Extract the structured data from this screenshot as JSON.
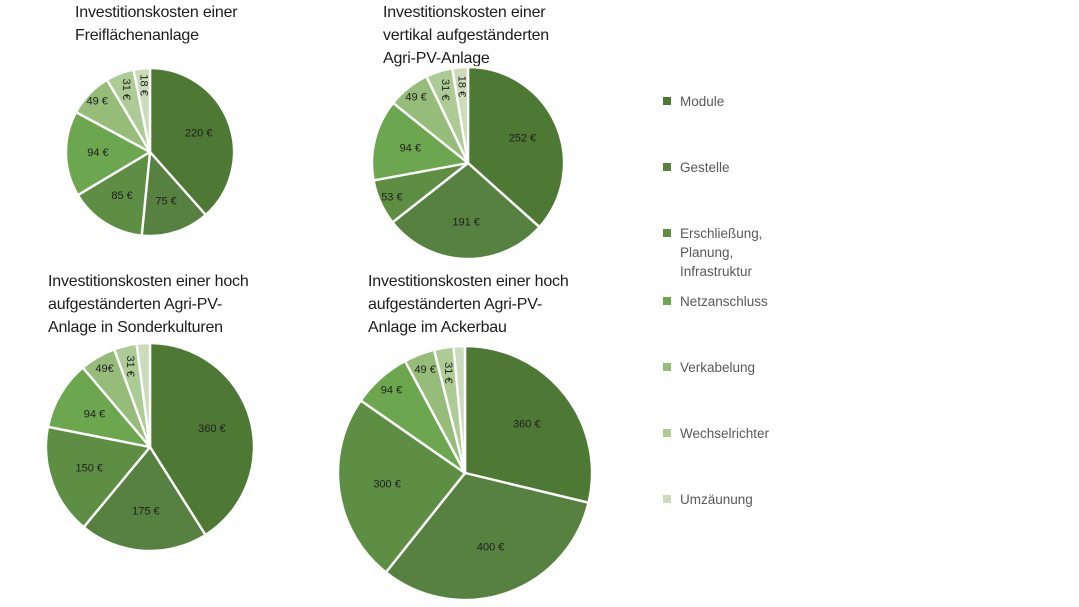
{
  "page": {
    "background_color": "#ffffff",
    "text_color": "#1c1c1c",
    "legend_text_color": "#595959"
  },
  "legend": {
    "items": [
      {
        "key": "module",
        "label": "Module",
        "lines": [
          "Module"
        ],
        "color": "#4d7935"
      },
      {
        "key": "gestelle",
        "label": "Gestelle",
        "lines": [
          "Gestelle"
        ],
        "color": "#568140"
      },
      {
        "key": "erschliessung",
        "label": "Erschließung, Planung, Infrastruktur",
        "lines": [
          "Erschließung,",
          "Planung,",
          "Infrastruktur"
        ],
        "color": "#5e8e43"
      },
      {
        "key": "netzanschluss",
        "label": "Netzanschluss",
        "lines": [
          "Netzanschluss"
        ],
        "color": "#6ca64e"
      },
      {
        "key": "verkabelung",
        "label": "Verkabelung",
        "lines": [
          "Verkabelung"
        ],
        "color": "#95bc78"
      },
      {
        "key": "wechselrichter",
        "label": "Wechselrichter",
        "lines": [
          "Wechselrichter"
        ],
        "color": "#adcb94"
      },
      {
        "key": "umzaeunung",
        "label": "Umzäunung",
        "lines": [
          "Umzäunung"
        ],
        "color": "#cbdcba"
      }
    ]
  },
  "chart_data": [
    {
      "type": "pie",
      "title": "Investitionskosten einer Freiflächenanlage",
      "title_lines": [
        "Investitionskosten einer",
        "Freiflächenanlage"
      ],
      "unit": "€",
      "slices": [
        {
          "category": "Module",
          "key": "module",
          "value": 220,
          "label": "220 €",
          "rotated": false
        },
        {
          "category": "Gestelle",
          "key": "gestelle",
          "value": 75,
          "label": "75 €",
          "rotated": false
        },
        {
          "category": "Erschließung, Planung, Infrastruktur",
          "key": "erschliessung",
          "value": 85,
          "label": "85 €",
          "rotated": false
        },
        {
          "category": "Netzanschluss",
          "key": "netzanschluss",
          "value": 94,
          "label": "94 €",
          "rotated": false
        },
        {
          "category": "Verkabelung",
          "key": "verkabelung",
          "value": 49,
          "label": "49 €",
          "rotated": false
        },
        {
          "category": "Wechselrichter",
          "key": "wechselrichter",
          "value": 31,
          "label": "31 €",
          "rotated": true
        },
        {
          "category": "Umzäunung",
          "key": "umzaeunung",
          "value": 18,
          "label": "18 €",
          "rotated": true
        }
      ]
    },
    {
      "type": "pie",
      "title": "Investitionskosten einer vertikal aufgeständerten Agri-PV-Anlage",
      "title_lines": [
        "Investitionskosten einer",
        "vertikal aufgeständerten",
        "Agri-PV-Anlage"
      ],
      "unit": "€",
      "slices": [
        {
          "category": "Module",
          "key": "module",
          "value": 252,
          "label": "252 €",
          "rotated": false
        },
        {
          "category": "Gestelle",
          "key": "gestelle",
          "value": 191,
          "label": "191 €",
          "rotated": false
        },
        {
          "category": "Erschließung, Planung, Infrastruktur",
          "key": "erschliessung",
          "value": 53,
          "label": "53 €",
          "rotated": false
        },
        {
          "category": "Netzanschluss",
          "key": "netzanschluss",
          "value": 94,
          "label": "94 €",
          "rotated": false
        },
        {
          "category": "Verkabelung",
          "key": "verkabelung",
          "value": 49,
          "label": "49 €",
          "rotated": false
        },
        {
          "category": "Wechselrichter",
          "key": "wechselrichter",
          "value": 31,
          "label": "31 €",
          "rotated": true
        },
        {
          "category": "Umzäunung",
          "key": "umzaeunung",
          "value": 18,
          "label": "18 €",
          "rotated": true
        }
      ]
    },
    {
      "type": "pie",
      "title": "Investitionskosten einer hoch aufgeständerten Agri-PV-Anlage in Sonderkulturen",
      "title_lines": [
        "Investitionskosten einer hoch",
        "aufgeständerten Agri-PV-",
        "Anlage in Sonderkulturen"
      ],
      "unit": "€",
      "slices": [
        {
          "category": "Module",
          "key": "module",
          "value": 360,
          "label": "360 €",
          "rotated": false
        },
        {
          "category": "Gestelle",
          "key": "gestelle",
          "value": 175,
          "label": "175 €",
          "rotated": false
        },
        {
          "category": "Erschließung, Planung, Infrastruktur",
          "key": "erschliessung",
          "value": 150,
          "label": "150 €",
          "rotated": false
        },
        {
          "category": "Netzanschluss",
          "key": "netzanschluss",
          "value": 94,
          "label": "94 €",
          "rotated": false
        },
        {
          "category": "Verkabelung",
          "key": "verkabelung",
          "value": 49,
          "label": "49€",
          "rotated": false
        },
        {
          "category": "Wechselrichter",
          "key": "wechselrichter",
          "value": 31,
          "label": "31 €",
          "rotated": true
        },
        {
          "category": "Umzäunung",
          "key": "umzaeunung",
          "value": 18,
          "label": null,
          "rotated": false
        }
      ]
    },
    {
      "type": "pie",
      "title": "Investitionskosten einer hoch aufgeständerten Agri-PV-Anlage im Ackerbau",
      "title_lines": [
        "Investitionskosten einer hoch",
        "aufgeständerten Agri-PV-",
        "Anlage im Ackerbau"
      ],
      "unit": "€",
      "slices": [
        {
          "category": "Module",
          "key": "module",
          "value": 360,
          "label": "360 €",
          "rotated": false
        },
        {
          "category": "Gestelle",
          "key": "gestelle",
          "value": 400,
          "label": "400 €",
          "rotated": false
        },
        {
          "category": "Erschließung, Planung, Infrastruktur",
          "key": "erschliessung",
          "value": 300,
          "label": "300 €",
          "rotated": false
        },
        {
          "category": "Netzanschluss",
          "key": "netzanschluss",
          "value": 94,
          "label": "94 €",
          "rotated": false
        },
        {
          "category": "Verkabelung",
          "key": "verkabelung",
          "value": 49,
          "label": "49 €",
          "rotated": false
        },
        {
          "category": "Wechselrichter",
          "key": "wechselrichter",
          "value": 31,
          "label": "31 €",
          "rotated": true
        },
        {
          "category": "Umzäunung",
          "key": "umzaeunung",
          "value": 18,
          "label": null,
          "rotated": false
        }
      ]
    }
  ]
}
